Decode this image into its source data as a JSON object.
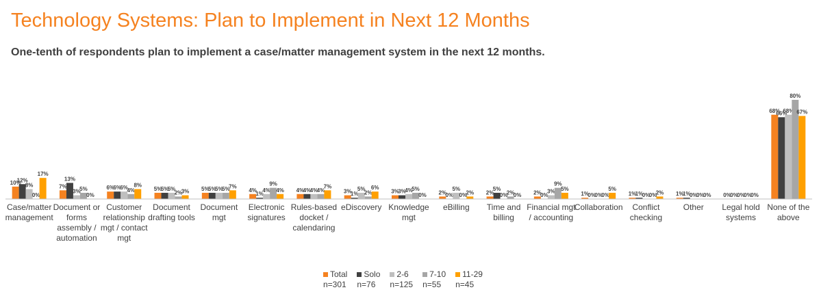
{
  "title": "Technology Systems: Plan to Implement in Next 12 Months",
  "subtitle": "One-tenth of respondents plan to implement a case/matter management system in the next 12 months.",
  "colors": {
    "title": "#f58220"
  },
  "chart_data": {
    "type": "bar",
    "categories": [
      [
        "Case/matter",
        "management"
      ],
      [
        "Document or",
        "forms",
        "assembly /",
        "automation"
      ],
      [
        "Customer",
        "relationship",
        "mgt / contact",
        "mgt"
      ],
      [
        "Document",
        "drafting tools"
      ],
      [
        "Document",
        "mgt"
      ],
      [
        "Electronic",
        "signatures"
      ],
      [
        "Rules-based",
        "docket /",
        "calendaring"
      ],
      [
        "eDiscovery"
      ],
      [
        "Knowledge",
        "mgt"
      ],
      [
        "eBilling"
      ],
      [
        "Time and",
        "billing"
      ],
      [
        "Financial mgt",
        "/ accounting"
      ],
      [
        "Collaboration"
      ],
      [
        "Conflict",
        "checking"
      ],
      [
        "Other"
      ],
      [
        "Legal hold",
        "systems"
      ],
      [
        "None of the",
        "above"
      ]
    ],
    "series": [
      {
        "name": "Total",
        "n": "n=301",
        "color": "#f58220",
        "values": [
          10,
          7,
          6,
          5,
          5,
          4,
          4,
          3,
          3,
          2,
          2,
          2,
          1,
          1,
          1,
          0,
          68
        ]
      },
      {
        "name": "Solo",
        "n": "n=76",
        "color": "#404040",
        "values": [
          12,
          13,
          6,
          5,
          5,
          1,
          4,
          1,
          3,
          0,
          5,
          0,
          0,
          1,
          1,
          0,
          66
        ]
      },
      {
        "name": "2-6",
        "n": "n=125",
        "color": "#bfbfbf",
        "values": [
          8,
          3,
          6,
          5,
          5,
          4,
          4,
          5,
          4,
          5,
          0,
          3,
          0,
          0,
          0,
          0,
          68
        ]
      },
      {
        "name": "7-10",
        "n": "n=55",
        "color": "#a6a6a6",
        "values": [
          0,
          5,
          4,
          2,
          5,
          9,
          4,
          2,
          5,
          0,
          2,
          9,
          0,
          0,
          0,
          0,
          80
        ]
      },
      {
        "name": "11-29",
        "n": "n=45",
        "color": "#ffa000",
        "values": [
          17,
          0,
          8,
          3,
          7,
          4,
          7,
          6,
          0,
          2,
          0,
          5,
          5,
          2,
          0,
          0,
          67
        ]
      }
    ],
    "value_suffix": "%",
    "ylim": [
      0,
      100
    ],
    "grid": false,
    "legend": "bottom"
  }
}
